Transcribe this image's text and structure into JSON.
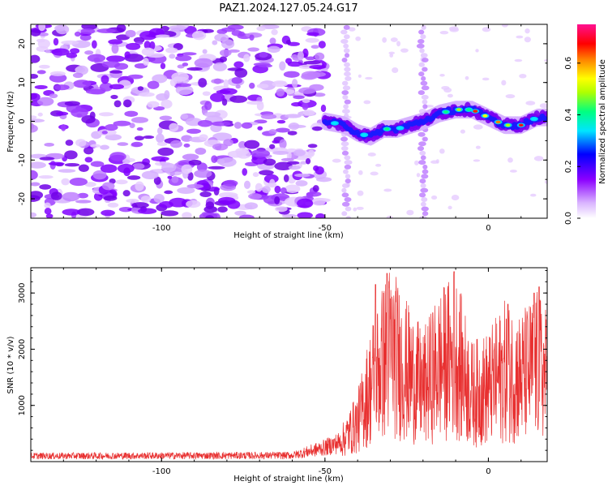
{
  "title": "PAZ1.2024.127.05.24.G17",
  "chart_data": [
    {
      "type": "heatmap",
      "xlabel": "Height of straight line (km)",
      "ylabel": "Frequency (Hz)",
      "xlim": [
        -140,
        18
      ],
      "ylim": [
        -25,
        25
      ],
      "x_ticks": [
        "-100",
        "-50",
        "0"
      ],
      "y_ticks": [
        "-20",
        "-10",
        "0",
        "10",
        "20"
      ],
      "colorbar": {
        "label": "Normalized spectral amplitude",
        "range": [
          0.0,
          0.75
        ],
        "ticks": [
          "0.0",
          "0.2",
          "0.4",
          "0.6"
        ],
        "colors": [
          "#ffffff",
          "#d9b3ff",
          "#8b00ff",
          "#0000ff",
          "#00e5ff",
          "#00ff80",
          "#b0ff00",
          "#ffff00",
          "#ff8000",
          "#ff0000",
          "#ff1090"
        ]
      },
      "features": {
        "noise_region_x": [
          -140,
          -50
        ],
        "signal_track": [
          [
            -50,
            0
          ],
          [
            -44,
            -1
          ],
          [
            -40,
            -3
          ],
          [
            -36,
            -4
          ],
          [
            -32,
            -2
          ],
          [
            -28,
            -2
          ],
          [
            -24,
            -1
          ],
          [
            -20,
            0
          ],
          [
            -15,
            2
          ],
          [
            -10,
            3
          ],
          [
            -5,
            3
          ],
          [
            0,
            1
          ],
          [
            5,
            -1
          ],
          [
            10,
            -1
          ],
          [
            15,
            1
          ],
          [
            18,
            1
          ]
        ]
      }
    },
    {
      "type": "line",
      "xlabel": "Height of straight line (km)",
      "ylabel": "SNR (10 * v/v)",
      "xlim": [
        -140,
        18
      ],
      "ylim": [
        0,
        3450
      ],
      "x_ticks": [
        "-100",
        "-50",
        "0"
      ],
      "y_ticks": [
        "1000",
        "2000",
        "3000"
      ],
      "color": "#e83030",
      "envelope": [
        [
          -140,
          100
        ],
        [
          -60,
          110
        ],
        [
          -50,
          250
        ],
        [
          -45,
          350
        ],
        [
          -40,
          700
        ],
        [
          -35,
          1500
        ],
        [
          -32,
          1800
        ],
        [
          -30,
          2000
        ],
        [
          -25,
          1600
        ],
        [
          -20,
          1300
        ],
        [
          -15,
          1700
        ],
        [
          -10,
          1900
        ],
        [
          -5,
          1200
        ],
        [
          0,
          1300
        ],
        [
          5,
          1600
        ],
        [
          10,
          1500
        ],
        [
          15,
          1700
        ],
        [
          18,
          1500
        ]
      ],
      "peaks": [
        [
          -34.5,
          3150
        ],
        [
          -31,
          3350
        ],
        [
          -10.5,
          3380
        ],
        [
          -8,
          2300
        ],
        [
          -17,
          2650
        ],
        [
          6,
          2800
        ],
        [
          15.5,
          3110
        ],
        [
          14,
          3000
        ]
      ]
    }
  ]
}
